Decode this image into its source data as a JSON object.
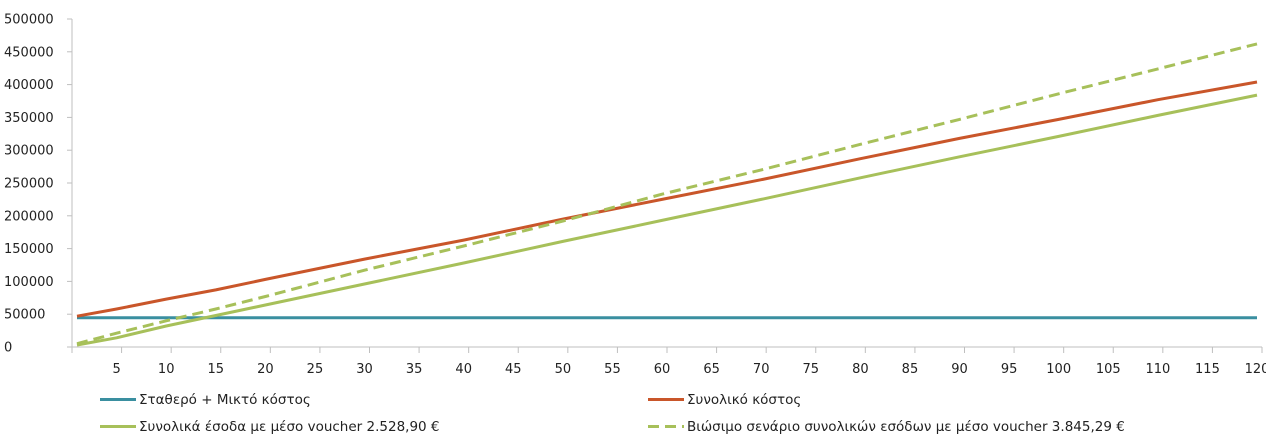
{
  "chart_data": {
    "type": "line",
    "title": "",
    "xlabel": "",
    "ylabel": "",
    "x_ticks": [
      5,
      10,
      15,
      20,
      25,
      30,
      35,
      40,
      45,
      50,
      55,
      60,
      65,
      70,
      75,
      80,
      85,
      90,
      95,
      100,
      105,
      110,
      115,
      120
    ],
    "y_ticks": [
      0,
      50000,
      100000,
      150000,
      200000,
      250000,
      300000,
      350000,
      400000,
      450000,
      500000
    ],
    "xlim": [
      0,
      120
    ],
    "ylim": [
      0,
      500000
    ],
    "grid": false,
    "legend_position": "bottom",
    "series": [
      {
        "name": "Σταθερό + Μικτό κόστος",
        "color": "#3a8fa0",
        "dash": "solid",
        "x": [
          1,
          120
        ],
        "y": [
          44500,
          44500
        ]
      },
      {
        "name": "Συνολικό κόστος",
        "color": "#c9562a",
        "dash": "solid",
        "x": [
          1,
          5,
          10,
          15,
          20,
          30,
          40,
          50,
          60,
          70,
          80,
          90,
          100,
          110,
          120
        ],
        "y": [
          47000,
          58000,
          73000,
          87000,
          103000,
          134000,
          163000,
          195000,
          225000,
          255000,
          287000,
          318000,
          347000,
          377000,
          404000
        ]
      },
      {
        "name": "Συνολικά έσοδα με μέσο voucher 2.528,90 €",
        "color": "#a7c05a",
        "dash": "solid",
        "x": [
          1,
          5,
          10,
          15,
          20,
          30,
          40,
          50,
          60,
          70,
          80,
          90,
          100,
          110,
          120
        ],
        "y": [
          3000,
          14000,
          32000,
          48000,
          64000,
          96000,
          128000,
          161000,
          193000,
          225000,
          258000,
          290000,
          321000,
          353000,
          384000
        ]
      },
      {
        "name": "Βιώσιμο σενάριο συνολικών εσόδων με μέσο voucher 3.845,29 €",
        "color": "#a7c05a",
        "dash": "dashed",
        "x": [
          1,
          5,
          10,
          15,
          20,
          30,
          40,
          50,
          60,
          70,
          80,
          90,
          100,
          110,
          120
        ],
        "y": [
          5000,
          21000,
          40000,
          58000,
          77000,
          117000,
          154000,
          192000,
          233000,
          270000,
          309000,
          347000,
          386000,
          424000,
          462000
        ]
      }
    ]
  }
}
